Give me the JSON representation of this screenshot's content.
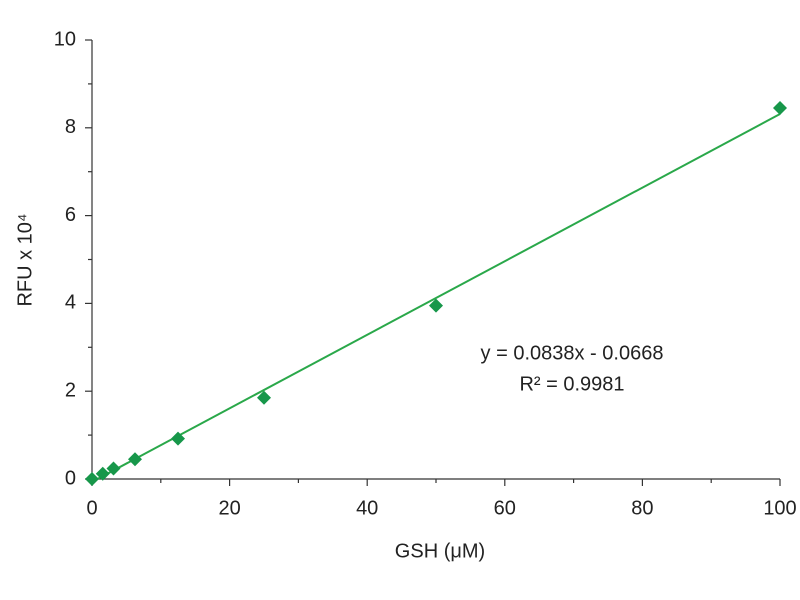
{
  "chart_data": {
    "type": "scatter",
    "x_label": "GSH (μM)",
    "y_label": "RFU x 10⁴",
    "x": [
      0,
      1.5625,
      3.125,
      6.25,
      12.5,
      25,
      50,
      100
    ],
    "series": [
      {
        "color": "#17974a",
        "values": [
          0,
          0.12,
          0.24,
          0.45,
          0.92,
          1.85,
          3.95,
          8.45
        ]
      }
    ],
    "trendline": {
      "slope": 0.0838,
      "intercept": -0.0668,
      "color": "#2aa84a"
    },
    "annotations": [
      "y = 0.0838x - 0.0668",
      "R² = 0.9981"
    ],
    "xlim": [
      0,
      100
    ],
    "xticks": [
      0,
      20,
      40,
      60,
      80,
      100
    ],
    "xminor": [
      10,
      30,
      50,
      70,
      90
    ],
    "ylim": [
      0,
      10
    ],
    "yticks": [
      0,
      2,
      4,
      6,
      8,
      10
    ],
    "yminor": [
      1,
      3,
      5,
      7,
      9
    ],
    "grid": false
  }
}
